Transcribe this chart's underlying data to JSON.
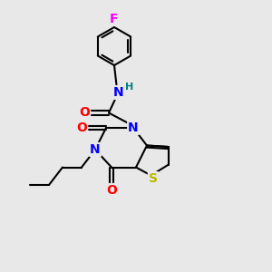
{
  "bg_color": "#e8e8e8",
  "bond_color": "#000000",
  "atom_colors": {
    "N": "#0000ff",
    "O": "#ff0000",
    "S": "#b8b800",
    "F": "#ff00ff",
    "H": "#008080",
    "C": "#000000"
  },
  "font_size": 9,
  "lw": 1.5
}
